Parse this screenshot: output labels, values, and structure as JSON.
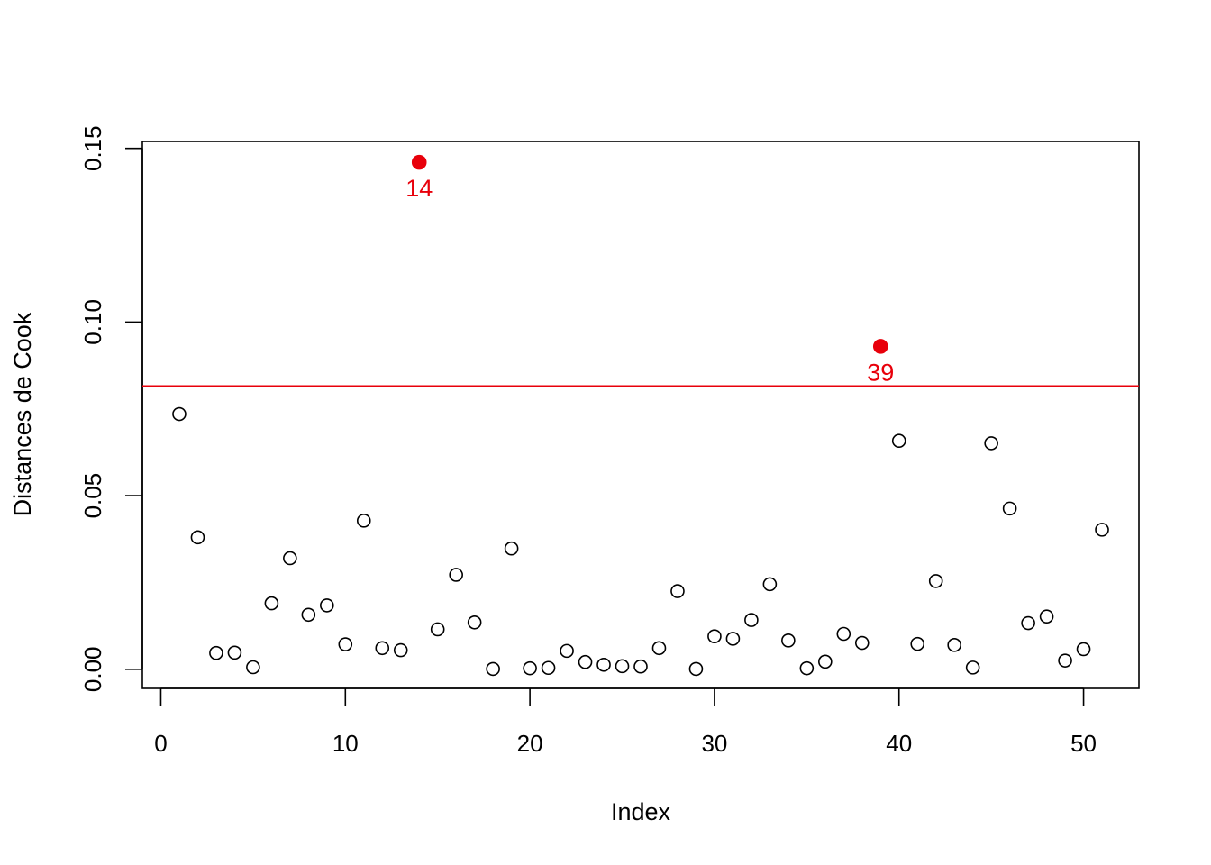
{
  "chart_data": {
    "type": "scatter",
    "title": "",
    "xlabel": "Index",
    "ylabel": "Distances de Cook",
    "xlim": [
      -1,
      53
    ],
    "ylim": [
      -0.0055,
      0.152
    ],
    "xticks": [
      0,
      10,
      20,
      30,
      40,
      50
    ],
    "yticks": [
      0.0,
      0.05,
      0.1,
      0.15
    ],
    "ytick_labels": [
      "0.00",
      "0.05",
      "0.10",
      "0.15"
    ],
    "grid": false,
    "legend": "none",
    "threshold": {
      "y": 0.0816,
      "color": "#e8000b"
    },
    "highlight_color": "#e8000b",
    "point_color": "#000000",
    "series": [
      {
        "values": [
          0.0735,
          0.038,
          0.0047,
          0.0048,
          0.0006,
          0.019,
          0.032,
          0.0157,
          0.0184,
          0.0072,
          0.0428,
          0.0061,
          0.0055,
          0.146,
          0.0115,
          0.0272,
          0.0135,
          0.0001,
          0.0348,
          0.0003,
          0.0004,
          0.0053,
          0.0021,
          0.0013,
          0.0009,
          0.0008,
          0.0061,
          0.0225,
          0.0001,
          0.0095,
          0.0088,
          0.0142,
          0.0245,
          0.0083,
          0.0003,
          0.0022,
          0.0102,
          0.0076,
          0.093,
          0.0658,
          0.0073,
          0.0254,
          0.007,
          0.0005,
          0.0651,
          0.0463,
          0.0133,
          0.0152,
          0.0025,
          0.0058,
          0.0402
        ]
      }
    ],
    "annotations": [
      {
        "index": 14,
        "y": 0.146,
        "text": "14"
      },
      {
        "index": 39,
        "y": 0.093,
        "text": "39"
      }
    ]
  }
}
